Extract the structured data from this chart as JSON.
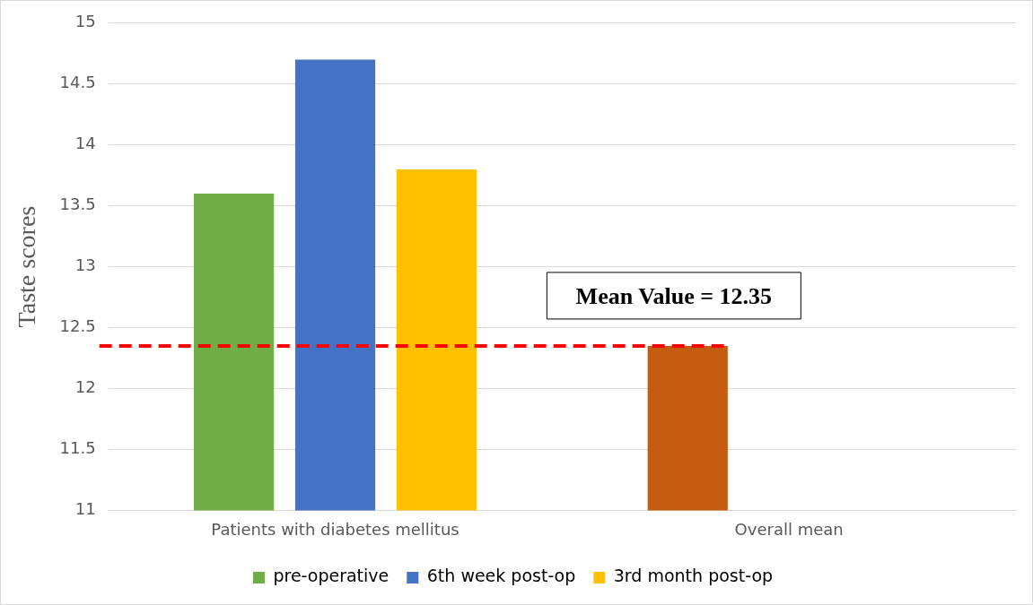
{
  "chart_data": {
    "type": "bar",
    "ylabel": "Taste scores",
    "categories": [
      "Patients with diabetes mellitus",
      "Overall mean"
    ],
    "series": [
      {
        "name": "pre-operative",
        "color": "#70ad47",
        "colors": [
          "#70ad47",
          "#c55a11"
        ],
        "values": [
          13.6,
          12.35
        ]
      },
      {
        "name": "6th week post-op",
        "color": "#4472c4",
        "values": [
          14.7,
          null
        ]
      },
      {
        "name": "3rd month post-op",
        "color": "#ffc000",
        "values": [
          13.8,
          null
        ]
      }
    ],
    "ylim": [
      11,
      15
    ],
    "yticks": [
      11,
      11.5,
      12,
      12.5,
      13,
      13.5,
      14,
      14.5,
      15
    ],
    "grid": "y",
    "legend": "bottom",
    "ref_lines": [
      {
        "axis": "y",
        "value": 12.35,
        "label": "Mean Value = 12.35",
        "color": "#ff0000",
        "line_style": "dashed"
      }
    ]
  }
}
